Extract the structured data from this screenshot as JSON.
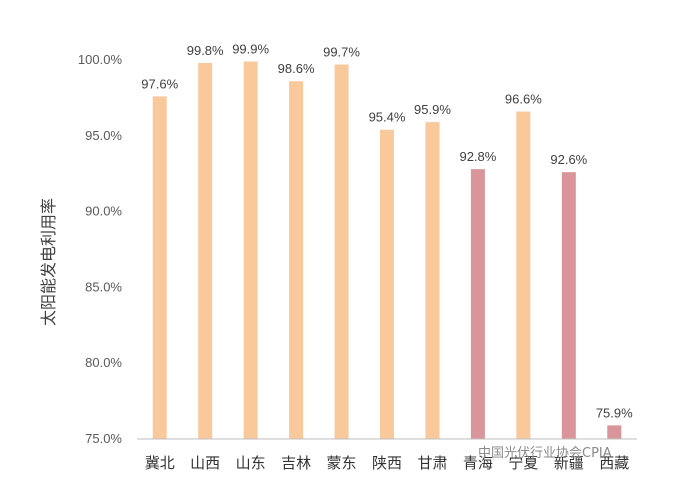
{
  "chart_data": {
    "type": "bar",
    "ylabel": "太阳能发电利用率",
    "categories": [
      "冀北",
      "山西",
      "山东",
      "吉林",
      "蒙东",
      "陕西",
      "甘肃",
      "青海",
      "宁夏",
      "新疆",
      "西藏"
    ],
    "values": [
      97.6,
      99.8,
      99.9,
      98.6,
      99.7,
      95.4,
      95.9,
      92.8,
      96.6,
      92.6,
      75.9
    ],
    "data_labels": [
      "97.6%",
      "99.8%",
      "99.9%",
      "98.6%",
      "99.7%",
      "95.4%",
      "95.9%",
      "92.8%",
      "96.6%",
      "92.6%",
      "75.9%"
    ],
    "bar_colors": [
      "#f9c89b",
      "#f9c89b",
      "#f9c89b",
      "#f9c89b",
      "#f9c89b",
      "#f9c89b",
      "#f9c89b",
      "#d9959a",
      "#f9c89b",
      "#d9959a",
      "#d9959a"
    ],
    "ylim": [
      75,
      100
    ],
    "yticks": [
      75,
      80,
      85,
      90,
      95,
      100
    ],
    "ytick_labels": [
      "75.0%",
      "80.0%",
      "85.0%",
      "90.0%",
      "95.0%",
      "100.0%"
    ],
    "grid": false
  },
  "watermark": "中国光伏行业协会CPIA"
}
